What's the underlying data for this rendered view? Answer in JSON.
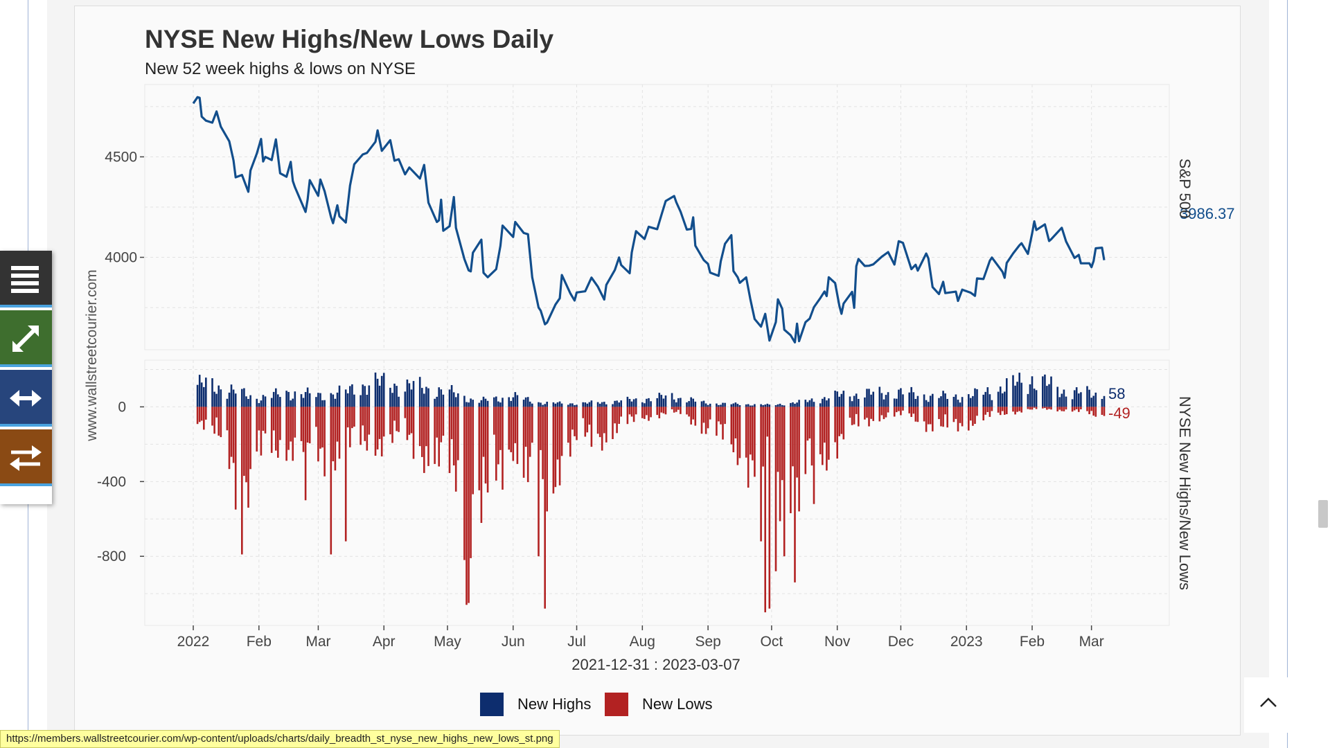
{
  "page": {
    "status_url": "https://members.wallstreetcourier.com/wp-content/uploads/charts/daily_breadth_st_nyse_new_highs_new_lows_st.png",
    "toolbar": {
      "menu_icon": "hamburger-icon",
      "expand_icon": "expand-icon",
      "width_icon": "horizontal-arrows-icon",
      "swap_icon": "swap-arrows-icon",
      "colors": [
        "#333333",
        "#3e6e2e",
        "#27457c",
        "#8a4a14"
      ]
    },
    "to_top_icon": "chevron-up-icon"
  },
  "chart_data": {
    "type": "line+bar",
    "title": "NYSE New Highs/New Lows Daily",
    "subtitle": "New 52 week highs & lows on NYSE",
    "watermark": "www.wallstreetcourier.com",
    "xlabel": "2021-12-31 : 2023-03-07",
    "x_ticks": [
      "2022",
      "Feb",
      "Mar",
      "Apr",
      "May",
      "Jun",
      "Jul",
      "Aug",
      "Sep",
      "Oct",
      "Nov",
      "Dec",
      "2023",
      "Feb",
      "Mar"
    ],
    "x_tick_dates": [
      "2022-01-01",
      "2022-02-01",
      "2022-03-01",
      "2022-04-01",
      "2022-05-01",
      "2022-06-01",
      "2022-07-01",
      "2022-08-01",
      "2022-09-01",
      "2022-10-01",
      "2022-11-01",
      "2022-12-01",
      "2023-01-01",
      "2023-02-01",
      "2023-03-01"
    ],
    "grid": true,
    "legend": {
      "position": "bottom",
      "items": [
        {
          "label": "New Highs",
          "color": "#0d2d6e"
        },
        {
          "label": "New Lows",
          "color": "#b22222"
        }
      ]
    },
    "top_panel": {
      "ylabel": "S&P 500",
      "y_ticks": [
        4500,
        4000
      ],
      "ylim": [
        3540,
        4860
      ],
      "color": "#124e8c",
      "last_value": "3986.37",
      "series": [
        [
          "2022-01-01",
          4766
        ],
        [
          "2022-01-03",
          4797
        ],
        [
          "2022-01-04",
          4794
        ],
        [
          "2022-01-05",
          4700
        ],
        [
          "2022-01-07",
          4680
        ],
        [
          "2022-01-10",
          4670
        ],
        [
          "2022-01-12",
          4726
        ],
        [
          "2022-01-14",
          4650
        ],
        [
          "2022-01-18",
          4577
        ],
        [
          "2022-01-20",
          4482
        ],
        [
          "2022-01-21",
          4398
        ],
        [
          "2022-01-24",
          4410
        ],
        [
          "2022-01-27",
          4326
        ],
        [
          "2022-01-28",
          4432
        ],
        [
          "2022-01-31",
          4516
        ],
        [
          "2022-02-02",
          4589
        ],
        [
          "2022-02-03",
          4477
        ],
        [
          "2022-02-04",
          4500
        ],
        [
          "2022-02-07",
          4484
        ],
        [
          "2022-02-09",
          4587
        ],
        [
          "2022-02-10",
          4504
        ],
        [
          "2022-02-11",
          4418
        ],
        [
          "2022-02-14",
          4401
        ],
        [
          "2022-02-16",
          4475
        ],
        [
          "2022-02-17",
          4380
        ],
        [
          "2022-02-18",
          4349
        ],
        [
          "2022-02-23",
          4226
        ],
        [
          "2022-02-24",
          4288
        ],
        [
          "2022-02-25",
          4384
        ],
        [
          "2022-03-01",
          4306
        ],
        [
          "2022-03-02",
          4387
        ],
        [
          "2022-03-04",
          4329
        ],
        [
          "2022-03-07",
          4201
        ],
        [
          "2022-03-08",
          4170
        ],
        [
          "2022-03-10",
          4259
        ],
        [
          "2022-03-11",
          4204
        ],
        [
          "2022-03-14",
          4173
        ],
        [
          "2022-03-16",
          4357
        ],
        [
          "2022-03-18",
          4463
        ],
        [
          "2022-03-22",
          4512
        ],
        [
          "2022-03-24",
          4520
        ],
        [
          "2022-03-28",
          4575
        ],
        [
          "2022-03-29",
          4632
        ],
        [
          "2022-03-31",
          4530
        ],
        [
          "2022-04-04",
          4583
        ],
        [
          "2022-04-06",
          4481
        ],
        [
          "2022-04-08",
          4488
        ],
        [
          "2022-04-11",
          4413
        ],
        [
          "2022-04-13",
          4447
        ],
        [
          "2022-04-18",
          4392
        ],
        [
          "2022-04-20",
          4460
        ],
        [
          "2022-04-22",
          4272
        ],
        [
          "2022-04-26",
          4176
        ],
        [
          "2022-04-27",
          4184
        ],
        [
          "2022-04-28",
          4287
        ],
        [
          "2022-04-29",
          4132
        ],
        [
          "2022-05-02",
          4155
        ],
        [
          "2022-05-04",
          4300
        ],
        [
          "2022-05-05",
          4147
        ],
        [
          "2022-05-09",
          3991
        ],
        [
          "2022-05-11",
          3935
        ],
        [
          "2022-05-12",
          3930
        ],
        [
          "2022-05-13",
          4023
        ],
        [
          "2022-05-17",
          4088
        ],
        [
          "2022-05-18",
          3923
        ],
        [
          "2022-05-20",
          3901
        ],
        [
          "2022-05-24",
          3941
        ],
        [
          "2022-05-26",
          4057
        ],
        [
          "2022-05-27",
          4158
        ],
        [
          "2022-06-01",
          4101
        ],
        [
          "2022-06-02",
          4176
        ],
        [
          "2022-06-06",
          4121
        ],
        [
          "2022-06-08",
          4115
        ],
        [
          "2022-06-10",
          3901
        ],
        [
          "2022-06-13",
          3750
        ],
        [
          "2022-06-14",
          3735
        ],
        [
          "2022-06-16",
          3667
        ],
        [
          "2022-06-17",
          3675
        ],
        [
          "2022-06-21",
          3765
        ],
        [
          "2022-06-23",
          3796
        ],
        [
          "2022-06-24",
          3912
        ],
        [
          "2022-06-28",
          3821
        ],
        [
          "2022-06-30",
          3785
        ],
        [
          "2022-07-01",
          3825
        ],
        [
          "2022-07-05",
          3831
        ],
        [
          "2022-07-08",
          3899
        ],
        [
          "2022-07-11",
          3854
        ],
        [
          "2022-07-14",
          3790
        ],
        [
          "2022-07-15",
          3863
        ],
        [
          "2022-07-19",
          3937
        ],
        [
          "2022-07-21",
          3999
        ],
        [
          "2022-07-22",
          3962
        ],
        [
          "2022-07-26",
          3921
        ],
        [
          "2022-07-27",
          4024
        ],
        [
          "2022-07-29",
          4130
        ],
        [
          "2022-08-02",
          4091
        ],
        [
          "2022-08-04",
          4152
        ],
        [
          "2022-08-08",
          4140
        ],
        [
          "2022-08-10",
          4210
        ],
        [
          "2022-08-12",
          4280
        ],
        [
          "2022-08-16",
          4305
        ],
        [
          "2022-08-17",
          4274
        ],
        [
          "2022-08-19",
          4228
        ],
        [
          "2022-08-22",
          4138
        ],
        [
          "2022-08-24",
          4141
        ],
        [
          "2022-08-25",
          4199
        ],
        [
          "2022-08-26",
          4058
        ],
        [
          "2022-08-30",
          3986
        ],
        [
          "2022-09-01",
          3967
        ],
        [
          "2022-09-02",
          3924
        ],
        [
          "2022-09-06",
          3908
        ],
        [
          "2022-09-07",
          3980
        ],
        [
          "2022-09-09",
          4067
        ],
        [
          "2022-09-12",
          4110
        ],
        [
          "2022-09-13",
          3932
        ],
        [
          "2022-09-15",
          3901
        ],
        [
          "2022-09-16",
          3873
        ],
        [
          "2022-09-19",
          3900
        ],
        [
          "2022-09-21",
          3790
        ],
        [
          "2022-09-23",
          3693
        ],
        [
          "2022-09-26",
          3655
        ],
        [
          "2022-09-28",
          3719
        ],
        [
          "2022-09-30",
          3586
        ],
        [
          "2022-10-03",
          3678
        ],
        [
          "2022-10-04",
          3791
        ],
        [
          "2022-10-06",
          3744
        ],
        [
          "2022-10-07",
          3640
        ],
        [
          "2022-10-10",
          3612
        ],
        [
          "2022-10-12",
          3577
        ],
        [
          "2022-10-13",
          3670
        ],
        [
          "2022-10-14",
          3583
        ],
        [
          "2022-10-17",
          3677
        ],
        [
          "2022-10-19",
          3695
        ],
        [
          "2022-10-21",
          3752
        ],
        [
          "2022-10-24",
          3797
        ],
        [
          "2022-10-26",
          3830
        ],
        [
          "2022-10-27",
          3807
        ],
        [
          "2022-10-28",
          3901
        ],
        [
          "2022-10-31",
          3872
        ],
        [
          "2022-11-02",
          3759
        ],
        [
          "2022-11-03",
          3719
        ],
        [
          "2022-11-04",
          3770
        ],
        [
          "2022-11-08",
          3828
        ],
        [
          "2022-11-09",
          3749
        ],
        [
          "2022-11-10",
          3956
        ],
        [
          "2022-11-11",
          3992
        ],
        [
          "2022-11-14",
          3957
        ],
        [
          "2022-11-16",
          3958
        ],
        [
          "2022-11-18",
          3965
        ],
        [
          "2022-11-22",
          4003
        ],
        [
          "2022-11-25",
          4026
        ],
        [
          "2022-11-28",
          3964
        ],
        [
          "2022-11-30",
          4080
        ],
        [
          "2022-12-02",
          4072
        ],
        [
          "2022-12-06",
          3941
        ],
        [
          "2022-12-08",
          3963
        ],
        [
          "2022-12-09",
          3934
        ],
        [
          "2022-12-13",
          4019
        ],
        [
          "2022-12-14",
          3995
        ],
        [
          "2022-12-16",
          3852
        ],
        [
          "2022-12-19",
          3817
        ],
        [
          "2022-12-21",
          3878
        ],
        [
          "2022-12-22",
          3822
        ],
        [
          "2022-12-27",
          3829
        ],
        [
          "2022-12-28",
          3783
        ],
        [
          "2022-12-30",
          3839
        ],
        [
          "2023-01-03",
          3824
        ],
        [
          "2023-01-05",
          3808
        ],
        [
          "2023-01-06",
          3895
        ],
        [
          "2023-01-09",
          3892
        ],
        [
          "2023-01-12",
          3983
        ],
        [
          "2023-01-13",
          3999
        ],
        [
          "2023-01-18",
          3928
        ],
        [
          "2023-01-19",
          3898
        ],
        [
          "2023-01-20",
          3972
        ],
        [
          "2023-01-23",
          4019
        ],
        [
          "2023-01-26",
          4060
        ],
        [
          "2023-01-27",
          4070
        ],
        [
          "2023-01-30",
          4017
        ],
        [
          "2023-02-01",
          4119
        ],
        [
          "2023-02-02",
          4179
        ],
        [
          "2023-02-03",
          4136
        ],
        [
          "2023-02-07",
          4164
        ],
        [
          "2023-02-09",
          4081
        ],
        [
          "2023-02-10",
          4090
        ],
        [
          "2023-02-14",
          4136
        ],
        [
          "2023-02-15",
          4147
        ],
        [
          "2023-02-17",
          4079
        ],
        [
          "2023-02-21",
          3997
        ],
        [
          "2023-02-23",
          4012
        ],
        [
          "2023-02-24",
          3970
        ],
        [
          "2023-02-28",
          3970
        ],
        [
          "2023-03-01",
          3951
        ],
        [
          "2023-03-02",
          3981
        ],
        [
          "2023-03-03",
          4045
        ],
        [
          "2023-03-06",
          4048
        ],
        [
          "2023-03-07",
          3986
        ]
      ]
    },
    "bottom_panel": {
      "ylabel": "NYSE New Highs/New Lows",
      "y_ticks": [
        0,
        -400,
        -800
      ],
      "ylim": [
        -1170,
        250
      ],
      "last_highs": "58",
      "last_lows": "-49",
      "highs_color": "#0d2d6e",
      "lows_color": "#b22222",
      "highs_anchors": [
        [
          "2022-01-01",
          120
        ],
        [
          "2022-01-14",
          105
        ],
        [
          "2022-01-31",
          45
        ],
        [
          "2022-02-15",
          75
        ],
        [
          "2022-03-01",
          60
        ],
        [
          "2022-03-15",
          80
        ],
        [
          "2022-03-25",
          130
        ],
        [
          "2022-04-05",
          120
        ],
        [
          "2022-04-20",
          100
        ],
        [
          "2022-05-01",
          80
        ],
        [
          "2022-05-15",
          30
        ],
        [
          "2022-06-01",
          55
        ],
        [
          "2022-06-15",
          20
        ],
        [
          "2022-07-01",
          18
        ],
        [
          "2022-07-15",
          25
        ],
        [
          "2022-08-01",
          40
        ],
        [
          "2022-08-15",
          55
        ],
        [
          "2022-09-01",
          18
        ],
        [
          "2022-09-15",
          15
        ],
        [
          "2022-10-01",
          10
        ],
        [
          "2022-10-15",
          25
        ],
        [
          "2022-11-01",
          60
        ],
        [
          "2022-11-15",
          70
        ],
        [
          "2022-12-01",
          75
        ],
        [
          "2022-12-15",
          55
        ],
        [
          "2023-01-01",
          55
        ],
        [
          "2023-01-15",
          90
        ],
        [
          "2023-02-01",
          150
        ],
        [
          "2023-02-15",
          85
        ],
        [
          "2023-03-01",
          70
        ],
        [
          "2023-03-07",
          58
        ]
      ],
      "lows_anchors": [
        [
          "2022-01-01",
          -40
        ],
        [
          "2022-01-10",
          -120
        ],
        [
          "2022-01-20",
          -300
        ],
        [
          "2022-02-01",
          -250
        ],
        [
          "2022-02-15",
          -180
        ],
        [
          "2022-03-01",
          -250
        ],
        [
          "2022-03-15",
          -200
        ],
        [
          "2022-03-25",
          -180
        ],
        [
          "2022-04-10",
          -150
        ],
        [
          "2022-04-25",
          -260
        ],
        [
          "2022-05-10",
          -420
        ],
        [
          "2022-05-20",
          -500
        ],
        [
          "2022-06-01",
          -180
        ],
        [
          "2022-06-15",
          -500
        ],
        [
          "2022-06-25",
          -200
        ],
        [
          "2022-07-15",
          -140
        ],
        [
          "2022-08-01",
          -50
        ],
        [
          "2022-08-20",
          -30
        ],
        [
          "2022-09-01",
          -120
        ],
        [
          "2022-09-15",
          -200
        ],
        [
          "2022-09-25",
          -360
        ],
        [
          "2022-10-05",
          -400
        ],
        [
          "2022-10-15",
          -340
        ],
        [
          "2022-10-25",
          -250
        ],
        [
          "2022-11-05",
          -130
        ],
        [
          "2022-11-20",
          -50
        ],
        [
          "2022-12-05",
          -40
        ],
        [
          "2022-12-20",
          -120
        ],
        [
          "2023-01-05",
          -70
        ],
        [
          "2023-01-20",
          -30
        ],
        [
          "2023-02-05",
          -10
        ],
        [
          "2023-02-20",
          -20
        ],
        [
          "2023-03-07",
          -49
        ]
      ],
      "lows_spikes": [
        [
          "2022-01-21",
          -550
        ],
        [
          "2022-01-24",
          -790
        ],
        [
          "2022-01-27",
          -540
        ],
        [
          "2022-02-23",
          -500
        ],
        [
          "2022-03-07",
          -790
        ],
        [
          "2022-03-14",
          -720
        ],
        [
          "2022-05-09",
          -820
        ],
        [
          "2022-05-10",
          -1060
        ],
        [
          "2022-05-11",
          -1050
        ],
        [
          "2022-05-12",
          -810
        ],
        [
          "2022-06-13",
          -800
        ],
        [
          "2022-06-16",
          -1080
        ],
        [
          "2022-06-17",
          -560
        ],
        [
          "2022-09-26",
          -720
        ],
        [
          "2022-09-28",
          -1100
        ],
        [
          "2022-09-30",
          -1080
        ],
        [
          "2022-10-03",
          -880
        ],
        [
          "2022-10-07",
          -800
        ],
        [
          "2022-10-12",
          -940
        ],
        [
          "2022-10-14",
          -560
        ],
        [
          "2022-10-21",
          -520
        ]
      ]
    }
  }
}
